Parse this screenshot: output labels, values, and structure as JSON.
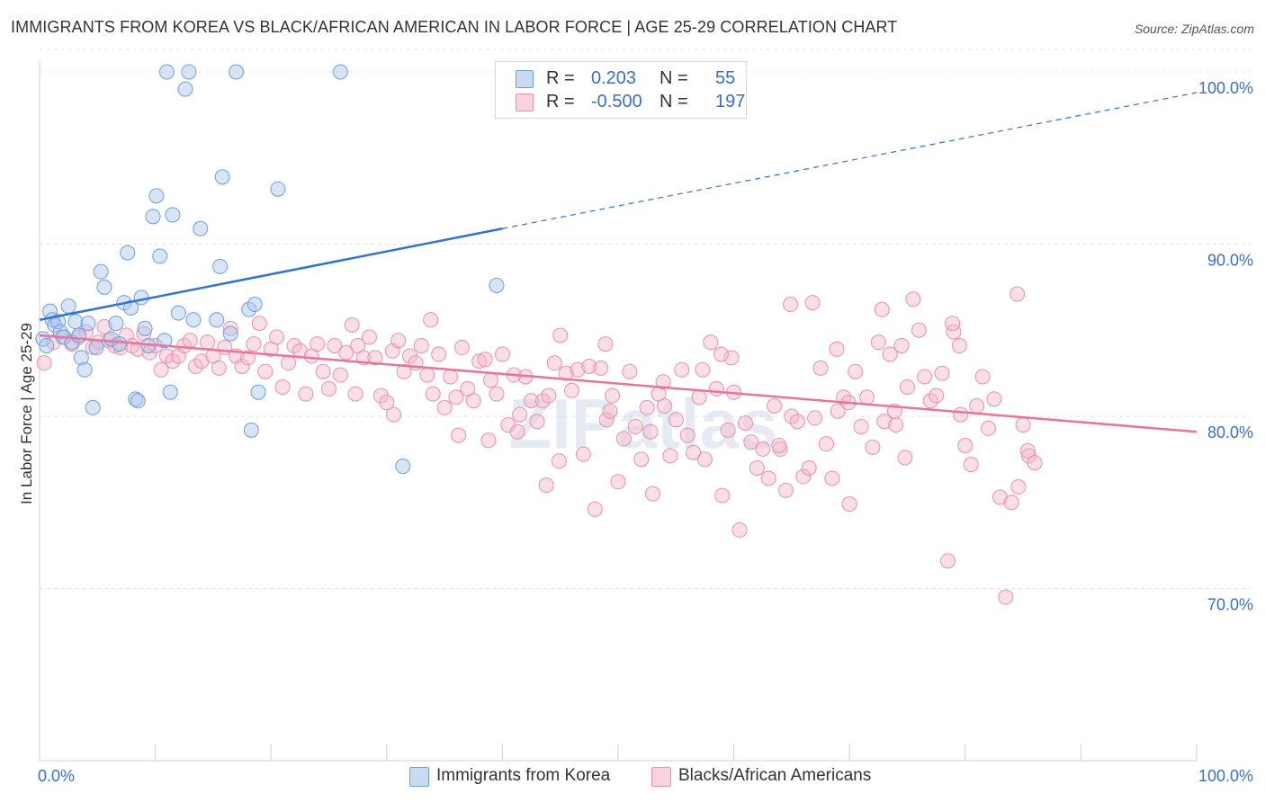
{
  "title": "IMMIGRANTS FROM KOREA VS BLACK/AFRICAN AMERICAN IN LABOR FORCE | AGE 25-29 CORRELATION CHART",
  "source": "Source: ZipAtlas.com",
  "watermark": "ZIPatlas",
  "colors": {
    "blue_fill": "#a9c6ea",
    "blue_stroke": "#6f9fd8",
    "blue_line": "#2f74cf",
    "pink_fill": "#f5b8cb",
    "pink_stroke": "#ec8fae",
    "pink_line": "#e8739b",
    "tick_label": "#3a6fc4",
    "grid": "#e3e3e3"
  },
  "legend": {
    "rows": [
      {
        "r_label": "R =",
        "r_value": "0.203",
        "n_label": "N =",
        "n_value": "55",
        "color": "#a9c6ea"
      },
      {
        "r_label": "R =",
        "r_value": "-0.500",
        "n_label": "N =",
        "n_value": "197",
        "color": "#f5b8cb"
      }
    ]
  },
  "bottom_legend": [
    {
      "label": "Immigrants from Korea",
      "color": "#a9c6ea"
    },
    {
      "label": "Blacks/African Americans",
      "color": "#f5b8cb"
    }
  ],
  "chart_data": {
    "type": "scatter",
    "title": "IMMIGRANTS FROM KOREA VS BLACK/AFRICAN AMERICAN IN LABOR FORCE | AGE 25-29 CORRELATION CHART",
    "xlabel": "",
    "ylabel": "In Labor Force | Age 25-29",
    "xlim": [
      0,
      100
    ],
    "ylim": [
      60,
      102
    ],
    "x_tick_labels": [
      "0.0%",
      "100.0%"
    ],
    "y_ticks": [
      70,
      80,
      90,
      100
    ],
    "y_tick_labels": [
      "70.0%",
      "80.0%",
      "90.0%",
      "100.0%"
    ],
    "grid": true,
    "series": [
      {
        "name": "Immigrants from Korea",
        "trend": {
          "x": [
            0,
            40
          ],
          "y": [
            85.6,
            90.9
          ],
          "dashed_to": [
            100,
            98.8
          ]
        },
        "points": [
          [
            0.3,
            84.5
          ],
          [
            0.6,
            84.1
          ],
          [
            0.9,
            86.1
          ],
          [
            1.1,
            85.6
          ],
          [
            1.3,
            85.3
          ],
          [
            1.6,
            85.5
          ],
          [
            1.8,
            84.9
          ],
          [
            2.1,
            84.6
          ],
          [
            2.5,
            86.4
          ],
          [
            2.8,
            84.3
          ],
          [
            3.1,
            85.5
          ],
          [
            3.4,
            84.7
          ],
          [
            3.6,
            83.4
          ],
          [
            3.9,
            82.7
          ],
          [
            4.2,
            85.4
          ],
          [
            4.6,
            80.5
          ],
          [
            4.9,
            84.0
          ],
          [
            5.3,
            88.4
          ],
          [
            5.6,
            87.5
          ],
          [
            6.2,
            84.5
          ],
          [
            6.6,
            85.4
          ],
          [
            6.9,
            84.2
          ],
          [
            7.3,
            86.6
          ],
          [
            7.6,
            89.5
          ],
          [
            7.9,
            86.3
          ],
          [
            8.3,
            81.0
          ],
          [
            8.5,
            80.9
          ],
          [
            8.8,
            86.9
          ],
          [
            9.1,
            85.1
          ],
          [
            9.4,
            84.1
          ],
          [
            9.8,
            91.6
          ],
          [
            10.1,
            92.8
          ],
          [
            10.4,
            89.3
          ],
          [
            10.8,
            84.4
          ],
          [
            11.0,
            100.0
          ],
          [
            11.3,
            81.4
          ],
          [
            11.5,
            91.7
          ],
          [
            12.0,
            86.0
          ],
          [
            12.6,
            99.0
          ],
          [
            12.9,
            100.0
          ],
          [
            13.3,
            85.6
          ],
          [
            13.9,
            90.9
          ],
          [
            15.3,
            85.6
          ],
          [
            15.6,
            88.7
          ],
          [
            15.8,
            93.9
          ],
          [
            16.5,
            84.8
          ],
          [
            17.0,
            100.0
          ],
          [
            18.1,
            86.2
          ],
          [
            18.6,
            86.5
          ],
          [
            18.9,
            81.4
          ],
          [
            18.3,
            79.2
          ],
          [
            20.6,
            93.2
          ],
          [
            26.0,
            100.0
          ],
          [
            31.4,
            77.1
          ],
          [
            39.5,
            87.6
          ]
        ]
      },
      {
        "name": "Blacks/African Americans",
        "trend": {
          "x": [
            0,
            100
          ],
          "y": [
            84.7,
            79.1
          ]
        },
        "points": [
          [
            0.4,
            83.1
          ],
          [
            1.2,
            84.3
          ],
          [
            2.0,
            84.6
          ],
          [
            2.8,
            84.2
          ],
          [
            3.4,
            84.6
          ],
          [
            4.0,
            84.9
          ],
          [
            4.6,
            84.0
          ],
          [
            5.1,
            84.3
          ],
          [
            5.6,
            85.2
          ],
          [
            6.0,
            84.4
          ],
          [
            6.5,
            84.1
          ],
          [
            7.0,
            84.0
          ],
          [
            7.5,
            84.7
          ],
          [
            8.0,
            84.1
          ],
          [
            8.5,
            83.9
          ],
          [
            9.0,
            84.8
          ],
          [
            9.5,
            83.7
          ],
          [
            10.0,
            84.1
          ],
          [
            10.5,
            82.7
          ],
          [
            11.0,
            83.5
          ],
          [
            11.5,
            83.2
          ],
          [
            12.0,
            83.5
          ],
          [
            12.5,
            84.1
          ],
          [
            13.0,
            84.4
          ],
          [
            13.5,
            82.9
          ],
          [
            14.0,
            83.2
          ],
          [
            14.5,
            84.3
          ],
          [
            15.0,
            83.5
          ],
          [
            15.5,
            82.8
          ],
          [
            16.0,
            84.0
          ],
          [
            16.5,
            85.1
          ],
          [
            17.0,
            83.5
          ],
          [
            17.5,
            82.9
          ],
          [
            18.0,
            83.4
          ],
          [
            18.5,
            84.2
          ],
          [
            19.0,
            85.4
          ],
          [
            19.5,
            82.6
          ],
          [
            20.0,
            83.9
          ],
          [
            20.5,
            84.6
          ],
          [
            21.0,
            81.7
          ],
          [
            21.5,
            83.1
          ],
          [
            22.0,
            84.1
          ],
          [
            22.5,
            83.8
          ],
          [
            23.0,
            81.3
          ],
          [
            23.5,
            83.5
          ],
          [
            24.0,
            84.2
          ],
          [
            24.5,
            82.6
          ],
          [
            25.0,
            81.6
          ],
          [
            25.5,
            84.1
          ],
          [
            26.0,
            82.4
          ],
          [
            26.5,
            83.7
          ],
          [
            27.0,
            85.3
          ],
          [
            27.5,
            84.1
          ],
          [
            28.0,
            83.4
          ],
          [
            28.5,
            84.6
          ],
          [
            29.0,
            83.4
          ],
          [
            29.5,
            81.2
          ],
          [
            30.0,
            80.8
          ],
          [
            30.5,
            83.8
          ],
          [
            31.0,
            84.4
          ],
          [
            31.5,
            82.6
          ],
          [
            32.0,
            83.5
          ],
          [
            32.5,
            83.1
          ],
          [
            33.0,
            84.1
          ],
          [
            33.5,
            82.4
          ],
          [
            34.0,
            81.3
          ],
          [
            34.5,
            83.6
          ],
          [
            35.0,
            80.5
          ],
          [
            35.5,
            82.3
          ],
          [
            36.0,
            81.1
          ],
          [
            36.5,
            84.0
          ],
          [
            37.0,
            81.6
          ],
          [
            37.5,
            80.9
          ],
          [
            38.0,
            83.2
          ],
          [
            38.5,
            83.3
          ],
          [
            39.0,
            82.1
          ],
          [
            39.5,
            81.3
          ],
          [
            40.0,
            83.6
          ],
          [
            40.5,
            79.5
          ],
          [
            41.0,
            82.4
          ],
          [
            41.5,
            80.1
          ],
          [
            42.0,
            82.3
          ],
          [
            42.5,
            80.9
          ],
          [
            43.0,
            79.7
          ],
          [
            43.5,
            80.9
          ],
          [
            44.0,
            81.2
          ],
          [
            44.5,
            83.1
          ],
          [
            45.0,
            84.7
          ],
          [
            45.5,
            82.5
          ],
          [
            46.0,
            81.5
          ],
          [
            46.5,
            82.7
          ],
          [
            47.0,
            77.8
          ],
          [
            47.5,
            82.9
          ],
          [
            48.0,
            74.6
          ],
          [
            48.5,
            82.8
          ],
          [
            49.0,
            79.8
          ],
          [
            49.5,
            81.2
          ],
          [
            50.0,
            76.2
          ],
          [
            50.5,
            78.7
          ],
          [
            51.0,
            82.6
          ],
          [
            51.5,
            79.4
          ],
          [
            52.0,
            77.5
          ],
          [
            52.5,
            80.5
          ],
          [
            53.0,
            75.5
          ],
          [
            53.5,
            81.3
          ],
          [
            54.0,
            80.6
          ],
          [
            54.5,
            77.7
          ],
          [
            55.0,
            79.8
          ],
          [
            55.5,
            82.7
          ],
          [
            56.0,
            78.9
          ],
          [
            56.5,
            77.9
          ],
          [
            57.0,
            81.1
          ],
          [
            57.5,
            77.5
          ],
          [
            58.0,
            84.3
          ],
          [
            58.5,
            81.6
          ],
          [
            59.0,
            75.4
          ],
          [
            59.5,
            79.2
          ],
          [
            60.0,
            81.4
          ],
          [
            60.5,
            73.4
          ],
          [
            61.0,
            79.6
          ],
          [
            61.5,
            78.5
          ],
          [
            62.0,
            77.0
          ],
          [
            62.5,
            78.1
          ],
          [
            63.0,
            76.4
          ],
          [
            63.5,
            80.6
          ],
          [
            64.0,
            78.1
          ],
          [
            64.5,
            75.7
          ],
          [
            65.0,
            80.0
          ],
          [
            65.5,
            79.7
          ],
          [
            66.0,
            76.5
          ],
          [
            66.5,
            77.0
          ],
          [
            67.0,
            79.9
          ],
          [
            67.5,
            82.8
          ],
          [
            68.0,
            78.4
          ],
          [
            68.5,
            76.4
          ],
          [
            69.0,
            80.3
          ],
          [
            69.5,
            81.1
          ],
          [
            70.0,
            74.9
          ],
          [
            70.5,
            82.6
          ],
          [
            71.0,
            79.4
          ],
          [
            71.5,
            81.1
          ],
          [
            72.0,
            78.2
          ],
          [
            72.5,
            84.3
          ],
          [
            73.0,
            79.7
          ],
          [
            73.5,
            83.6
          ],
          [
            74.0,
            79.5
          ],
          [
            74.5,
            84.1
          ],
          [
            75.0,
            81.7
          ],
          [
            75.5,
            86.8
          ],
          [
            76.0,
            85.0
          ],
          [
            76.5,
            82.3
          ],
          [
            77.0,
            80.9
          ],
          [
            77.5,
            81.2
          ],
          [
            78.0,
            82.5
          ],
          [
            78.5,
            71.6
          ],
          [
            79.0,
            84.9
          ],
          [
            79.5,
            84.1
          ],
          [
            80.0,
            78.3
          ],
          [
            80.5,
            77.2
          ],
          [
            81.0,
            80.6
          ],
          [
            81.5,
            82.3
          ],
          [
            82.0,
            79.3
          ],
          [
            82.5,
            81.0
          ],
          [
            83.0,
            75.3
          ],
          [
            83.5,
            69.5
          ],
          [
            84.0,
            75.0
          ],
          [
            84.5,
            87.1
          ],
          [
            85.0,
            79.5
          ],
          [
            85.5,
            77.7
          ],
          [
            86.0,
            77.3
          ],
          [
            36.2,
            78.9
          ],
          [
            27.3,
            81.3
          ],
          [
            30.6,
            80.1
          ],
          [
            44.9,
            77.4
          ],
          [
            52.8,
            79.1
          ],
          [
            59.8,
            83.4
          ],
          [
            64.9,
            86.5
          ],
          [
            69.9,
            80.8
          ],
          [
            74.8,
            77.6
          ],
          [
            79.6,
            80.1
          ],
          [
            33.8,
            85.6
          ],
          [
            38.8,
            78.6
          ],
          [
            43.8,
            76.0
          ],
          [
            48.9,
            84.2
          ],
          [
            53.9,
            82.0
          ],
          [
            58.9,
            83.6
          ],
          [
            63.9,
            78.3
          ],
          [
            68.9,
            83.9
          ],
          [
            73.9,
            80.3
          ],
          [
            78.9,
            85.4
          ],
          [
            84.6,
            75.9
          ],
          [
            85.4,
            78.0
          ],
          [
            72.8,
            86.2
          ],
          [
            66.8,
            86.6
          ],
          [
            57.3,
            82.7
          ],
          [
            49.3,
            80.3
          ],
          [
            41.3,
            79.1
          ]
        ]
      }
    ]
  }
}
